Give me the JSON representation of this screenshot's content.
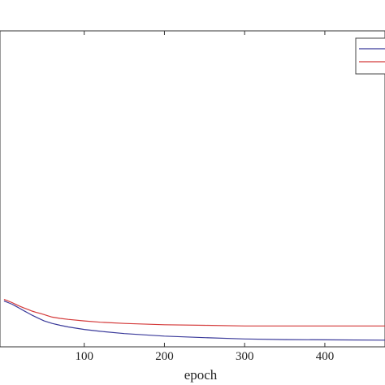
{
  "chart_data": {
    "type": "line",
    "xlabel": "epoch",
    "ylabel": "",
    "title": "",
    "xlim": [
      -5,
      475
    ],
    "ylim": [
      0,
      1
    ],
    "x_ticks": [
      100,
      200,
      300,
      400
    ],
    "x_tick_labels": [
      "100",
      "200",
      "300",
      "400"
    ],
    "grid": false,
    "legend": {
      "placement": "top-right",
      "entries": [
        "",
        ""
      ]
    },
    "series": [
      {
        "color": "#3a3a9a",
        "x": [
          0,
          5,
          10,
          15,
          20,
          25,
          30,
          35,
          40,
          45,
          50,
          60,
          70,
          80,
          100,
          120,
          150,
          200,
          250,
          300,
          350,
          400,
          475
        ],
        "y": [
          0.145,
          0.14,
          0.135,
          0.128,
          0.121,
          0.114,
          0.107,
          0.1,
          0.094,
          0.088,
          0.082,
          0.074,
          0.068,
          0.063,
          0.055,
          0.049,
          0.042,
          0.034,
          0.029,
          0.025,
          0.023,
          0.022,
          0.021
        ]
      },
      {
        "color": "#d43a3a",
        "x": [
          0,
          5,
          10,
          15,
          20,
          25,
          30,
          35,
          40,
          45,
          50,
          55,
          60,
          70,
          80,
          100,
          120,
          150,
          200,
          250,
          300,
          350,
          400,
          475
        ],
        "y": [
          0.15,
          0.145,
          0.14,
          0.134,
          0.128,
          0.123,
          0.118,
          0.113,
          0.109,
          0.106,
          0.102,
          0.098,
          0.094,
          0.09,
          0.087,
          0.082,
          0.078,
          0.074,
          0.07,
          0.068,
          0.066,
          0.066,
          0.066,
          0.066
        ]
      }
    ]
  }
}
